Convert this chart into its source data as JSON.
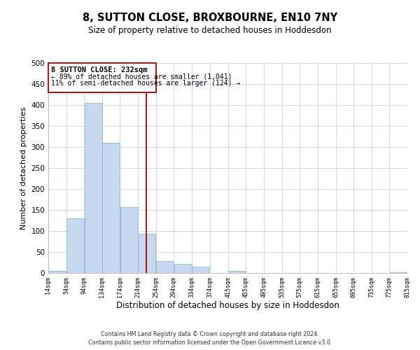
{
  "title": "8, SUTTON CLOSE, BROXBOURNE, EN10 7NY",
  "subtitle": "Size of property relative to detached houses in Hoddesdon",
  "xlabel": "Distribution of detached houses by size in Hoddesdon",
  "ylabel": "Number of detached properties",
  "bar_color": "#c5d8ed",
  "bar_edge_color": "#90b8d8",
  "vline_x": 232,
  "vline_color": "#aa0000",
  "annotation_box_color": "#aa0000",
  "annotation_lines": [
    "8 SUTTON CLOSE: 232sqm",
    "← 89% of detached houses are smaller (1,041)",
    "11% of semi-detached houses are larger (124) →"
  ],
  "bin_edges": [
    14,
    54,
    94,
    134,
    174,
    214,
    254,
    294,
    334,
    374,
    415,
    455,
    495,
    535,
    575,
    615,
    655,
    695,
    735,
    775,
    815
  ],
  "bar_heights": [
    5,
    130,
    405,
    310,
    157,
    93,
    29,
    22,
    15,
    0,
    5,
    0,
    0,
    0,
    0,
    0,
    0,
    0,
    0,
    2
  ],
  "ylim": [
    0,
    500
  ],
  "yticks": [
    0,
    50,
    100,
    150,
    200,
    250,
    300,
    350,
    400,
    450,
    500
  ],
  "footer_lines": [
    "Contains HM Land Registry data © Crown copyright and database right 2024.",
    "Contains public sector information licensed under the Open Government Licence v3.0."
  ],
  "background_color": "#ffffff",
  "grid_color": "#ccd8e8"
}
